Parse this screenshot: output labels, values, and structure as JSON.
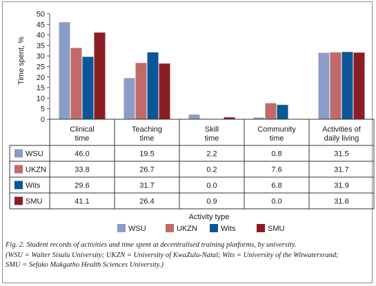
{
  "chart_data": {
    "type": "bar",
    "ylabel": "Time spent, %",
    "xlabel": "Activity type",
    "ylim": [
      0,
      50
    ],
    "yticks": [
      0,
      5,
      10,
      15,
      20,
      25,
      30,
      35,
      40,
      45,
      50
    ],
    "categories": [
      [
        "Clinical",
        "time"
      ],
      [
        "Teaching",
        "time"
      ],
      [
        "Skill",
        "time"
      ],
      [
        "Community",
        "time"
      ],
      [
        "Activities of",
        "daily living"
      ]
    ],
    "series": [
      {
        "name": "WSU",
        "color": "#8c9cc8",
        "values": [
          46.0,
          19.5,
          2.2,
          0.8,
          31.5
        ],
        "labels": [
          "46.0",
          "19.5",
          "2.2",
          "0.8",
          "31.5"
        ]
      },
      {
        "name": "UKZN",
        "color": "#c06a6a",
        "values": [
          33.8,
          26.7,
          0.2,
          7.6,
          31.7
        ],
        "labels": [
          "33.8",
          "26.7",
          "0.2",
          "7.6",
          "31.7"
        ]
      },
      {
        "name": "Wits",
        "color": "#0a5798",
        "values": [
          29.6,
          31.7,
          0.0,
          6.8,
          31.9
        ],
        "labels": [
          "29.6",
          "31.7",
          "0.0",
          "6.8",
          "31.9"
        ]
      },
      {
        "name": "SMU",
        "color": "#8b1e22",
        "values": [
          41.1,
          26.4,
          0.9,
          0.0,
          31.6
        ],
        "labels": [
          "41.1",
          "26.4",
          "0.9",
          "0.0",
          "31.6"
        ]
      }
    ],
    "legend_position": "bottom",
    "grid": false
  },
  "caption": {
    "lines": [
      "Fig. 2. Student records of activities and time spent at decentralised training platforms, by university.",
      "(WSU = Walter Sisulu University; UKZN = University of KwaZulu-Natal; Wits = University of the Witwatersrand;",
      "SMU = Sefako Makgatho Health Sciences University.)"
    ]
  }
}
